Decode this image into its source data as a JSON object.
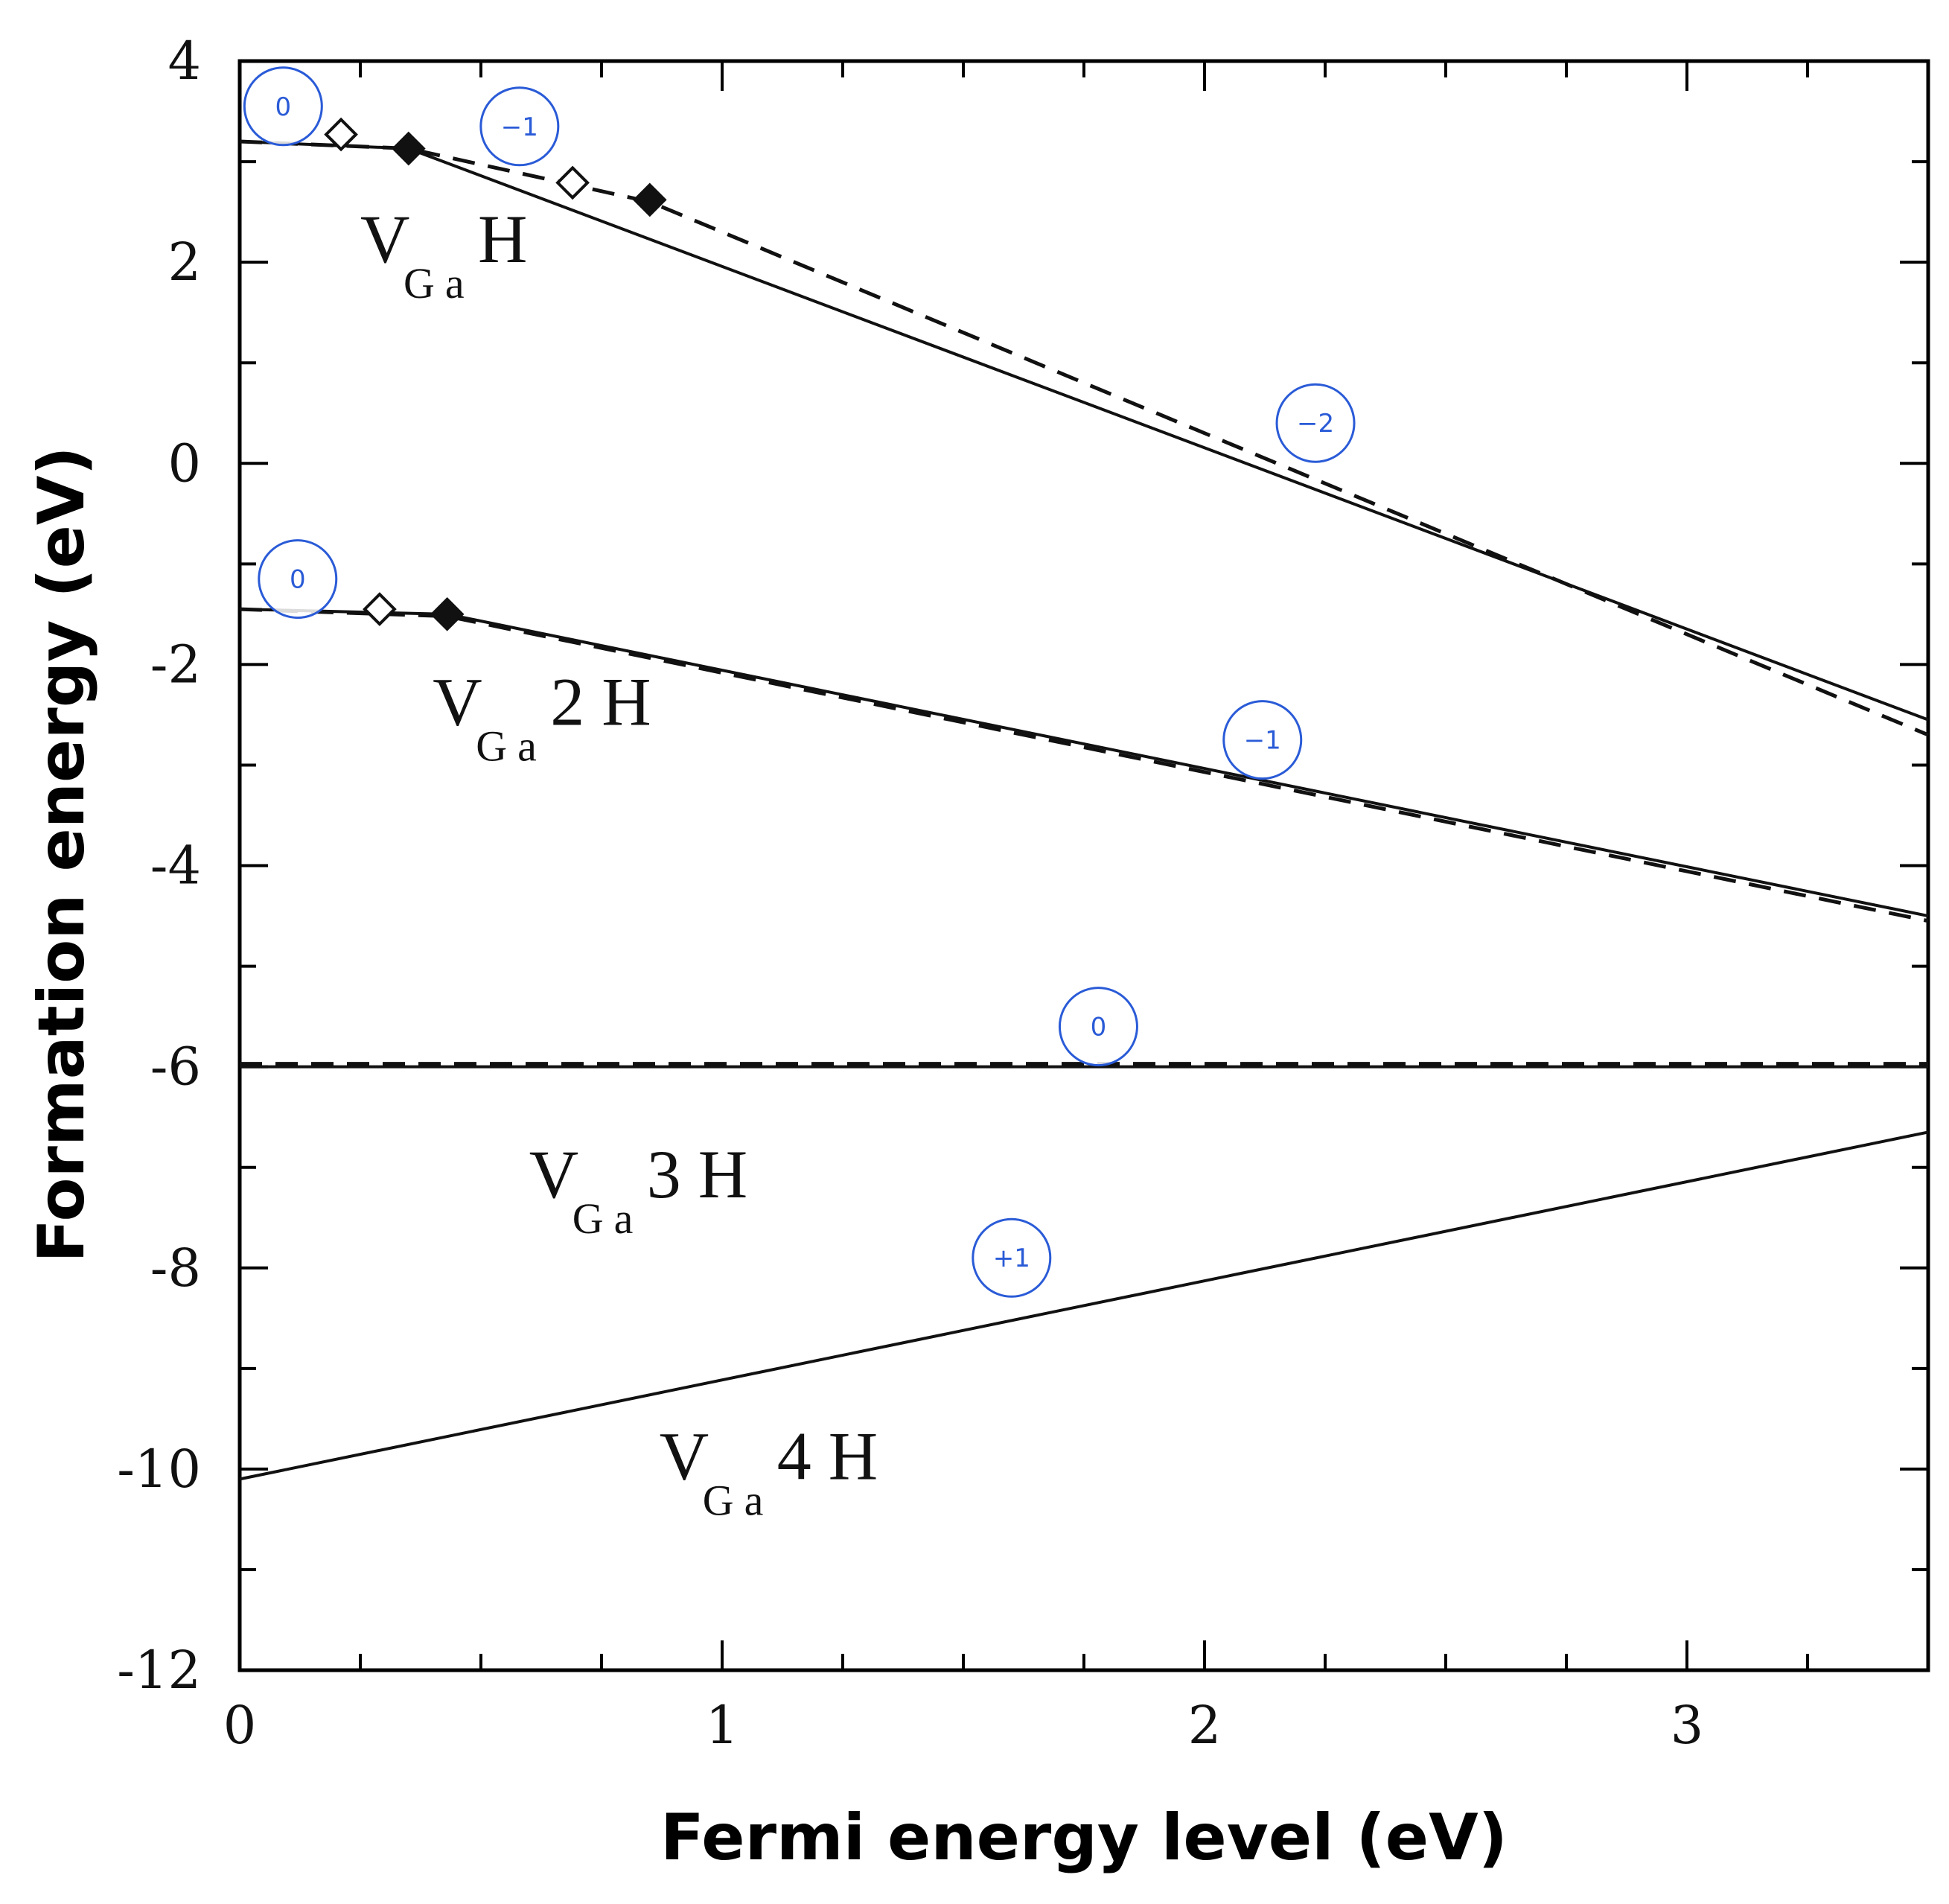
{
  "chart_data": {
    "type": "line",
    "xlabel": "Fermi energy level (eV)",
    "ylabel": "Formation energy (eV)",
    "xlim": [
      0,
      3.5
    ],
    "ylim": [
      -12,
      4
    ],
    "x_ticks": [
      0,
      1,
      2,
      3
    ],
    "y_ticks": [
      4,
      2,
      0,
      -2,
      -4,
      -6,
      -8,
      -10,
      -12
    ],
    "x_tick_labels": [
      "0",
      "1",
      "2",
      "3"
    ],
    "y_tick_labels": [
      "4",
      "2",
      "0",
      "-2",
      "-4",
      "-6",
      "-8",
      "-10",
      "-12"
    ],
    "series": [
      {
        "name": "VGaH",
        "base": "V",
        "subscript": "Ga",
        "suffix": "H",
        "solid": [
          [
            0,
            3.2
          ],
          [
            0.35,
            3.13
          ],
          [
            3.5,
            -2.55
          ]
        ],
        "dashed": [
          [
            0,
            3.2
          ],
          [
            0.35,
            3.13
          ],
          [
            0.85,
            2.6
          ],
          [
            3.5,
            -2.7
          ]
        ],
        "open_markers": [
          [
            0.21,
            3.27
          ],
          [
            0.69,
            2.79
          ]
        ],
        "filled_markers": [
          [
            0.35,
            3.13
          ],
          [
            0.85,
            2.62
          ]
        ],
        "charges": [
          {
            "label": "0",
            "x": 0.09,
            "y": 3.55
          },
          {
            "label": "−1",
            "x": 0.58,
            "y": 3.35
          },
          {
            "label": "−2",
            "x": 2.23,
            "y": 0.4
          }
        ],
        "label_pos": [
          0.25,
          2.0
        ]
      },
      {
        "name": "VGa2H",
        "base": "V",
        "subscript": "Ga",
        "suffix": "2 H",
        "solid": [
          [
            0,
            -1.45
          ],
          [
            0.43,
            -1.5
          ],
          [
            3.5,
            -4.5
          ]
        ],
        "dashed": [
          [
            0,
            -1.45
          ],
          [
            0.43,
            -1.52
          ],
          [
            3.5,
            -4.55
          ]
        ],
        "open_markers": [
          [
            0.29,
            -1.45
          ]
        ],
        "filled_markers": [
          [
            0.43,
            -1.5
          ]
        ],
        "charges": [
          {
            "label": "0",
            "x": 0.12,
            "y": -1.15
          },
          {
            "label": "−1",
            "x": 2.12,
            "y": -2.75
          }
        ],
        "label_pos": [
          0.4,
          -2.6
        ]
      },
      {
        "name": "VGa3H",
        "base": "V",
        "subscript": "Ga",
        "suffix": "3 H",
        "solid": [
          [
            0,
            -6.0
          ],
          [
            3.5,
            -6.0
          ]
        ],
        "dashed": [
          [
            0,
            -5.97
          ],
          [
            3.5,
            -5.97
          ]
        ],
        "open_markers": [],
        "filled_markers": [],
        "charges": [
          {
            "label": "0",
            "x": 1.78,
            "y": -5.6
          }
        ],
        "label_pos": [
          0.6,
          -7.3
        ]
      },
      {
        "name": "VGa4H",
        "base": "V",
        "subscript": "Ga",
        "suffix": "4 H",
        "solid": [
          [
            0,
            -10.1
          ],
          [
            3.5,
            -6.65
          ]
        ],
        "dashed": [],
        "open_markers": [],
        "filled_markers": [],
        "charges": [
          {
            "label": "+1",
            "x": 1.6,
            "y": -7.9
          }
        ],
        "label_pos": [
          0.87,
          -10.1
        ]
      }
    ],
    "colors": {
      "line": "#111111",
      "charge_circle": "#2a5bd7",
      "axis": "#000000"
    }
  }
}
